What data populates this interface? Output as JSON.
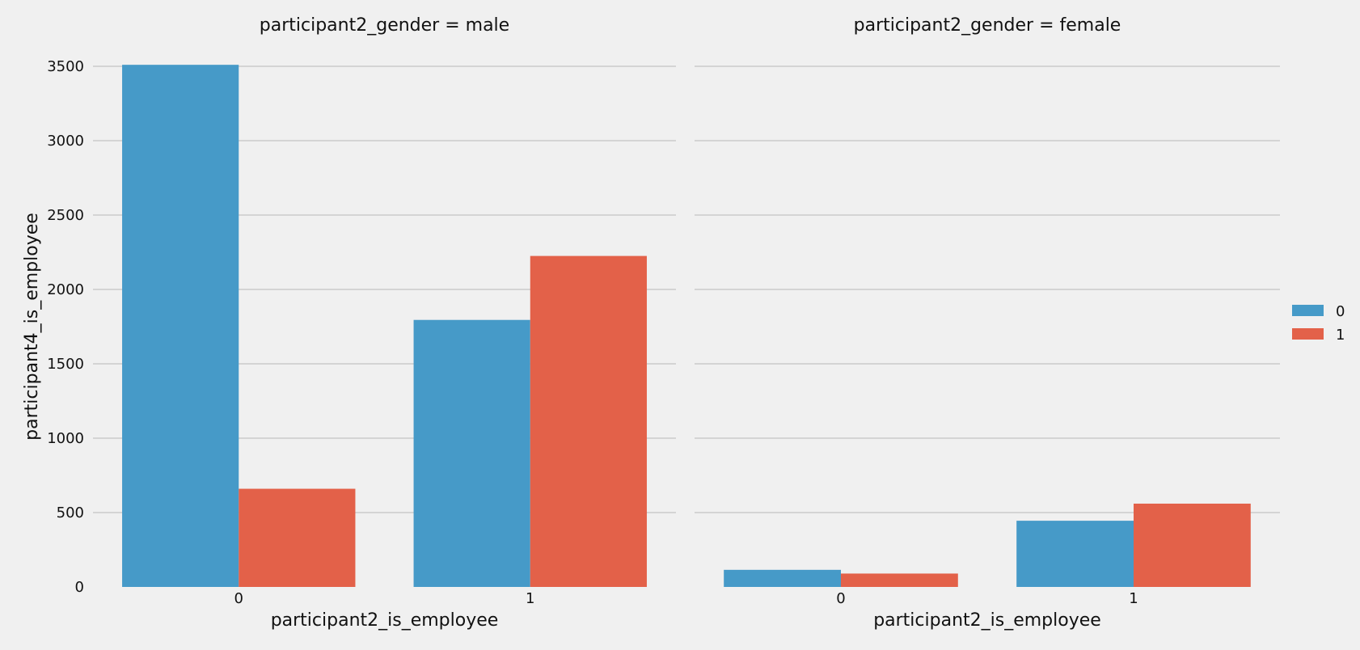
{
  "chart_data": {
    "type": "bar",
    "ylabel": "participant4_is_employee",
    "ylim": [
      0,
      3500
    ],
    "yticks": [
      0,
      500,
      1000,
      1500,
      2000,
      2500,
      3000,
      3500
    ],
    "grid": "horizontal",
    "legend_placement": "right",
    "facets": [
      {
        "title": "participant2_gender = male",
        "xlabel": "participant2_is_employee",
        "categories": [
          "0",
          "1"
        ],
        "series": [
          {
            "name": "0",
            "values": [
              3510,
              1795
            ]
          },
          {
            "name": "1",
            "values": [
              660,
              2225
            ]
          }
        ]
      },
      {
        "title": "participant2_gender = female",
        "xlabel": "participant2_is_employee",
        "categories": [
          "0",
          "1"
        ],
        "series": [
          {
            "name": "0",
            "values": [
              115,
              445
            ]
          },
          {
            "name": "1",
            "values": [
              90,
              560
            ]
          }
        ]
      }
    ],
    "colors": {
      "0": "#469ac8",
      "1": "#e36149"
    }
  }
}
